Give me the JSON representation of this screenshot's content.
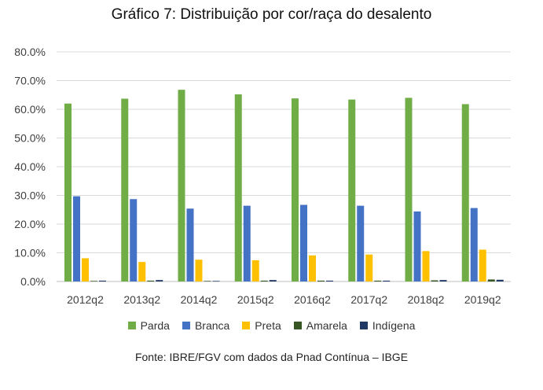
{
  "chart_data": {
    "type": "bar",
    "title": "Gráfico 7: Distribuição por cor/raça do desalento",
    "categories": [
      "2012q2",
      "2013q2",
      "2014q2",
      "2015q2",
      "2016q2",
      "2017q2",
      "2018q2",
      "2019q2"
    ],
    "series": [
      {
        "name": "Parda",
        "color": "#70ad47",
        "values": [
          62.0,
          63.7,
          66.8,
          65.2,
          63.8,
          63.4,
          64.0,
          61.8
        ]
      },
      {
        "name": "Branca",
        "color": "#4472c4",
        "values": [
          29.7,
          28.7,
          25.4,
          26.4,
          26.7,
          26.4,
          24.4,
          25.6
        ]
      },
      {
        "name": "Preta",
        "color": "#ffc000",
        "values": [
          8.1,
          6.8,
          7.6,
          7.4,
          9.1,
          9.4,
          10.6,
          11.1
        ]
      },
      {
        "name": "Amarela",
        "color": "#375623",
        "values": [
          0.2,
          0.3,
          0.2,
          0.3,
          0.3,
          0.3,
          0.4,
          0.7
        ]
      },
      {
        "name": "Indígena",
        "color": "#203864",
        "values": [
          0.3,
          0.5,
          0.2,
          0.5,
          0.3,
          0.3,
          0.5,
          0.6
        ]
      }
    ],
    "ylim": [
      0,
      80
    ],
    "yticks": [
      "0.0%",
      "10.0%",
      "20.0%",
      "30.0%",
      "40.0%",
      "50.0%",
      "60.0%",
      "70.0%",
      "80.0%"
    ],
    "grid": true,
    "legend_position": "bottom",
    "source": "Fonte: IBRE/FGV com dados da Pnad Contínua – IBGE"
  }
}
